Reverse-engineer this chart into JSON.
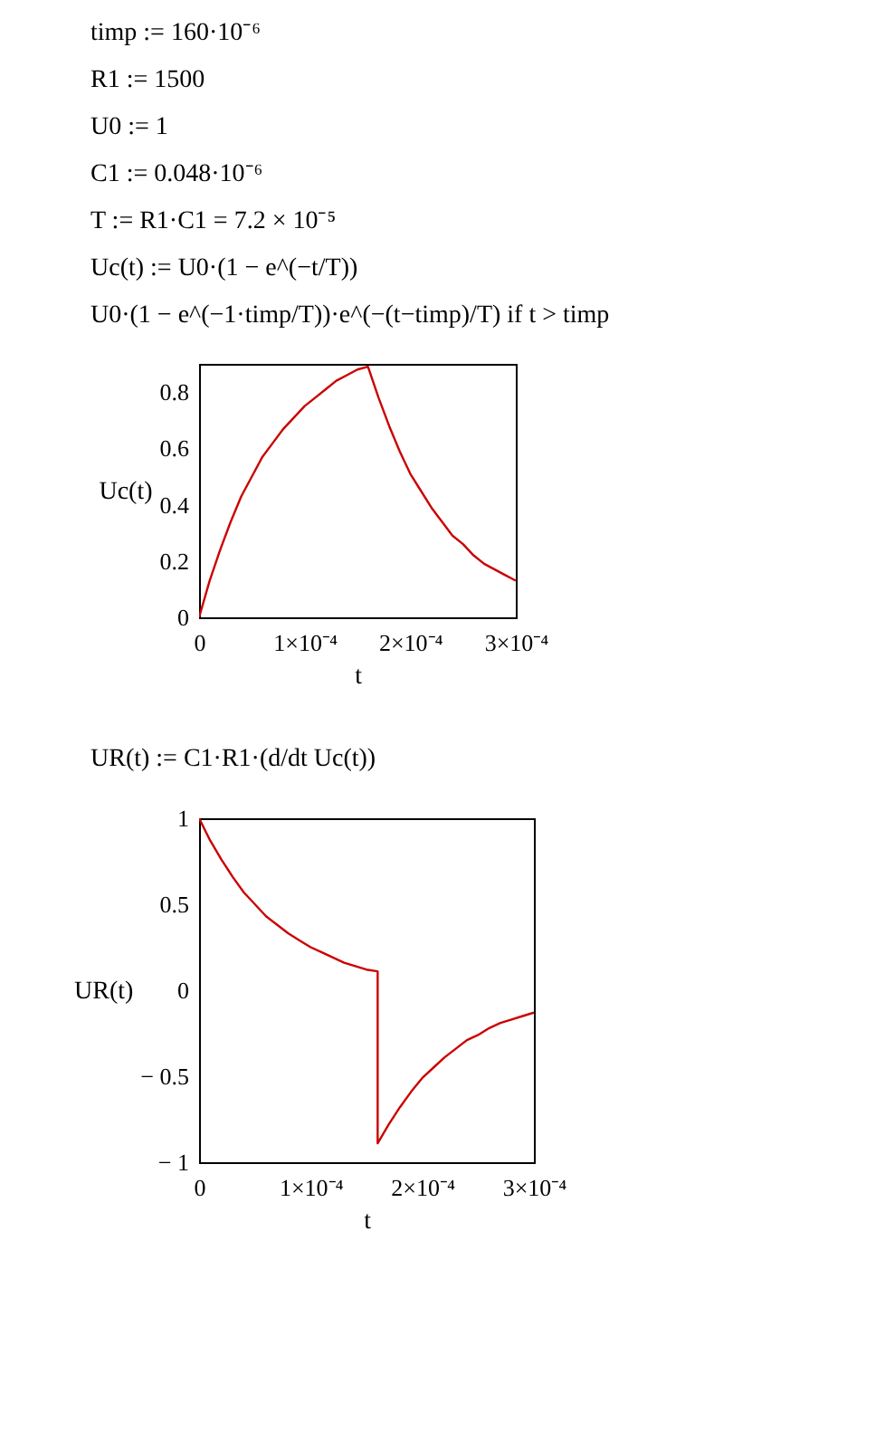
{
  "chart_data": [
    {
      "type": "line",
      "xlabel": "t",
      "ylabel": "Uc(t)",
      "annotations": [
        "timp := 160·10⁻⁶",
        "R1 := 1500",
        "U0 := 1",
        "C1 := 0.048·10⁻⁶",
        "T := R1·C1 = 7.2 × 10⁻⁵",
        "Uc(t) := U0·(1 − e^(−t/T))",
        "U0·(1 − e^(−1·timp/T))·e^(−(t−timp)/T)   if  t > timp"
      ],
      "x": [
        0,
        1e-05,
        2e-05,
        3e-05,
        4e-05,
        5e-05,
        6e-05,
        7e-05,
        8e-05,
        9e-05,
        0.0001,
        0.00011,
        0.00012,
        0.00013,
        0.00014,
        0.00015,
        0.00016,
        0.00017,
        0.00018,
        0.00019,
        0.0002,
        0.00021,
        0.00022,
        0.00023,
        0.00024,
        0.00025,
        0.00026,
        0.00027,
        0.00028,
        0.00029,
        0.0003
      ],
      "series": [
        {
          "color": "#cc0000",
          "values": [
            0,
            0.13,
            0.24,
            0.34,
            0.43,
            0.5,
            0.57,
            0.62,
            0.67,
            0.71,
            0.75,
            0.78,
            0.81,
            0.84,
            0.86,
            0.88,
            0.89,
            0.78,
            0.68,
            0.59,
            0.51,
            0.45,
            0.39,
            0.34,
            0.29,
            0.26,
            0.22,
            0.19,
            0.17,
            0.15,
            0.13
          ]
        }
      ],
      "xlim": [
        0,
        0.0003
      ],
      "ylim": [
        0,
        0.9
      ],
      "xticks": [
        0,
        {
          "value": 0.0001,
          "label": "1×10⁻⁴"
        },
        {
          "value": 0.0002,
          "label": "2×10⁻⁴"
        },
        {
          "value": 0.0003,
          "label": "3×10⁻⁴"
        }
      ],
      "yticks": [
        0,
        0.2,
        0.4,
        0.6,
        0.8
      ],
      "grid": false
    },
    {
      "type": "line",
      "xlabel": "t",
      "ylabel": "UR(t)",
      "annotations": [
        "UR(t) := C1·R1·(d/dt Uc(t))"
      ],
      "x": [
        0,
        1e-05,
        2e-05,
        3e-05,
        4e-05,
        5e-05,
        6e-05,
        7e-05,
        8e-05,
        9e-05,
        0.0001,
        0.00011,
        0.00012,
        0.00013,
        0.00014,
        0.00015,
        0.00016,
        0.00016,
        0.00017,
        0.00018,
        0.00019,
        0.0002,
        0.00021,
        0.00022,
        0.00023,
        0.00024,
        0.00025,
        0.00026,
        0.00027,
        0.00028,
        0.00029,
        0.0003
      ],
      "series": [
        {
          "color": "#cc0000",
          "values": [
            1,
            0.87,
            0.76,
            0.66,
            0.57,
            0.5,
            0.43,
            0.38,
            0.33,
            0.29,
            0.25,
            0.22,
            0.19,
            0.16,
            0.14,
            0.12,
            0.11,
            -0.89,
            -0.78,
            -0.68,
            -0.59,
            -0.51,
            -0.45,
            -0.39,
            -0.34,
            -0.29,
            -0.26,
            -0.22,
            -0.19,
            -0.17,
            -0.15,
            -0.13
          ]
        }
      ],
      "xlim": [
        0,
        0.0003
      ],
      "ylim": [
        -1,
        1
      ],
      "xticks": [
        0,
        {
          "value": 0.0001,
          "label": "1×10⁻⁴"
        },
        {
          "value": 0.0002,
          "label": "2×10⁻⁴"
        },
        {
          "value": 0.0003,
          "label": "3×10⁻⁴"
        }
      ],
      "yticks": [
        {
          "value": -1,
          "label": "− 1"
        },
        {
          "value": -0.5,
          "label": "− 0.5"
        },
        0,
        0.5,
        1
      ],
      "grid": false
    }
  ]
}
